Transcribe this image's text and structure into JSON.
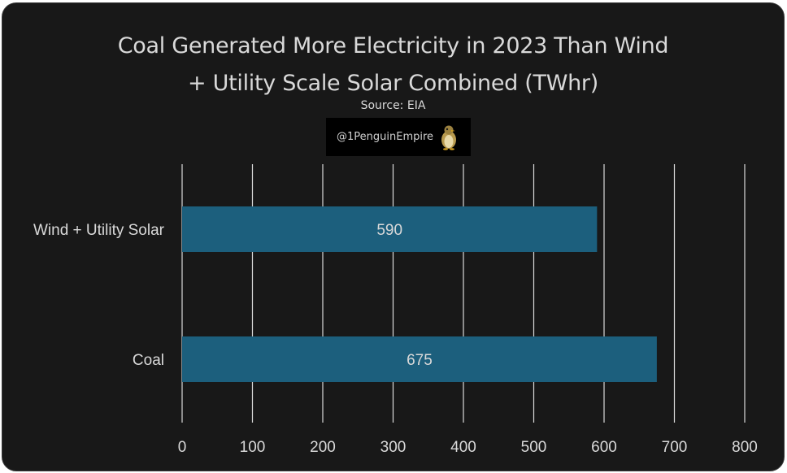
{
  "title_lines": [
    "Coal Generated More Electricity in 2023 Than Wind",
    "+ Utility Scale Solar Combined (TWhr)"
  ],
  "subtitle": "Source: EIA",
  "watermark": {
    "text": "@1PenguinEmpire",
    "icon": "penguin-icon"
  },
  "colors": {
    "background": "#181818",
    "bar": "#1c5f7d",
    "text": "#d9d9d9",
    "gridline": "#d9d9d9"
  },
  "chart_data": {
    "type": "bar",
    "orientation": "horizontal",
    "categories": [
      "Wind + Utility Solar",
      "Coal"
    ],
    "values": [
      590,
      675
    ],
    "data_labels": [
      "590",
      "675"
    ],
    "title": "Coal Generated More Electricity in 2023 Than Wind + Utility Scale Solar Combined (TWhr)",
    "subtitle": "Source: EIA",
    "xlabel": "",
    "ylabel": "",
    "xlim": [
      0,
      800
    ],
    "x_ticks": [
      0,
      100,
      200,
      300,
      400,
      500,
      600,
      700,
      800
    ],
    "grid": "vertical",
    "legend": "none"
  }
}
